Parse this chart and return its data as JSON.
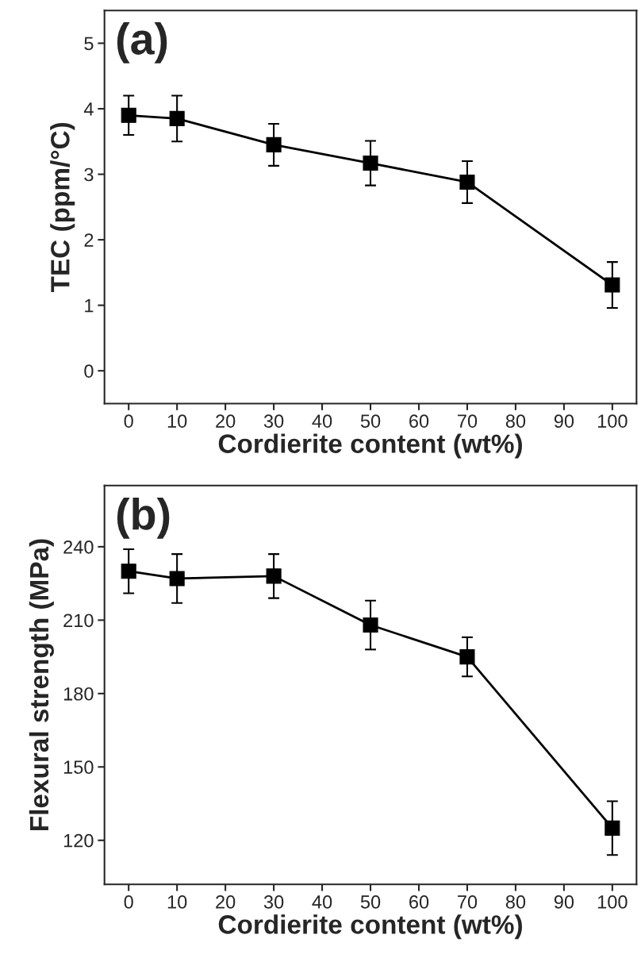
{
  "chart_data": [
    {
      "type": "line",
      "x": [
        0,
        10,
        30,
        50,
        70,
        100
      ],
      "xlabel": "Cordierite content (wt%)",
      "ylabel": "TEC (ppm/°C)",
      "annotations": [
        "(a)"
      ],
      "xlim": [
        -5,
        105
      ],
      "xticks": [
        0,
        10,
        20,
        30,
        40,
        50,
        60,
        70,
        80,
        90,
        100
      ],
      "ylim": [
        -0.5,
        5.5
      ],
      "yticks": [
        0,
        1,
        2,
        3,
        4,
        5
      ],
      "marker": "square",
      "line_style": "solid",
      "grid": false,
      "legend": false,
      "series": [
        {
          "color": "#000000",
          "values": [
            3.9,
            3.85,
            3.45,
            3.17,
            2.88,
            1.31
          ],
          "errors": [
            0.3,
            0.35,
            0.32,
            0.34,
            0.32,
            0.35
          ]
        }
      ]
    },
    {
      "type": "line",
      "x": [
        0,
        10,
        30,
        50,
        70,
        100
      ],
      "xlabel": "Cordierite content (wt%)",
      "ylabel": "Flexural strength (MPa)",
      "annotations": [
        "(b)"
      ],
      "xlim": [
        -5,
        105
      ],
      "xticks": [
        0,
        10,
        20,
        30,
        40,
        50,
        60,
        70,
        80,
        90,
        100
      ],
      "ylim": [
        102,
        265
      ],
      "yticks": [
        120,
        150,
        180,
        210,
        240
      ],
      "marker": "square",
      "line_style": "solid",
      "grid": false,
      "legend": false,
      "series": [
        {
          "color": "#000000",
          "values": [
            230,
            227,
            228,
            208,
            195,
            125
          ],
          "errors": [
            9,
            10,
            9,
            10,
            8,
            11
          ]
        }
      ]
    }
  ]
}
